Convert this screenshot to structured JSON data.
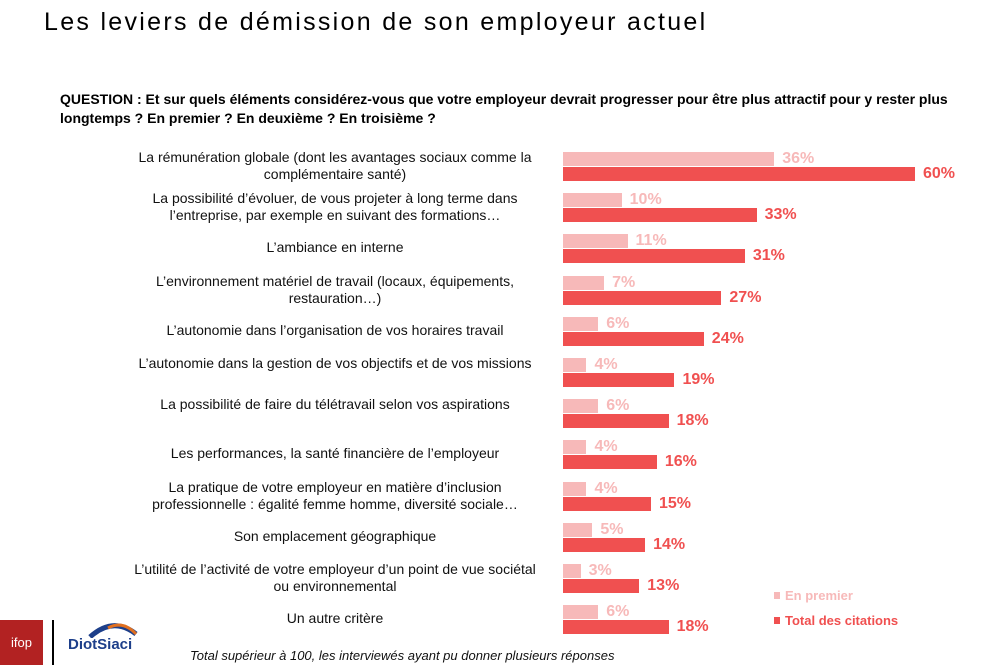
{
  "title": "Les leviers de démission de son employeur actuel",
  "question": "QUESTION : Et sur quels éléments considérez-vous que votre employeur devrait progresser pour être plus attractif pour y rester plus longtemps ? En premier ? En deuxième ? En troisième ?",
  "footnote": "Total supérieur à 100, les interviewés ayant pu donner plusieurs réponses",
  "logos": {
    "ifop": "ifop",
    "diot": "DiotSiaci"
  },
  "chart_data": {
    "type": "bar",
    "orientation": "horizontal",
    "categories": [
      "La rémunération globale (dont les avantages sociaux comme la complémentaire santé)",
      "La possibilité d’évoluer, de vous projeter à long terme dans l’entreprise, par exemple en suivant des formations…",
      "L’ambiance en interne",
      "L’environnement matériel de travail (locaux, équipements, restauration…)",
      "L’autonomie dans l’organisation de vos horaires travail",
      "L’autonomie dans la gestion de vos objectifs et de vos missions",
      "La possibilité de faire du télétravail selon vos aspirations",
      "Les performances, la santé financière de l’employeur",
      "La pratique de votre employeur en matière d’inclusion professionnelle : égalité femme homme, diversité sociale…",
      "Son emplacement géographique",
      "L’utilité de l’activité de votre employeur d’un point de vue sociétal ou environnemental",
      "Un autre critère"
    ],
    "series": [
      {
        "name": "En premier",
        "color": "#F7B9B9",
        "values": [
          36,
          10,
          11,
          7,
          6,
          4,
          6,
          4,
          4,
          5,
          3,
          6
        ],
        "labels": [
          "36%",
          "10%",
          "11%",
          "7%",
          "6%",
          "4%",
          "6%",
          "4%",
          "4%",
          "5%",
          "3%",
          "6%"
        ]
      },
      {
        "name": "Total des citations",
        "color": "#F05050",
        "values": [
          60,
          33,
          31,
          27,
          24,
          19,
          18,
          16,
          15,
          14,
          13,
          18
        ],
        "labels": [
          "60%",
          "33%",
          "31%",
          "27%",
          "24%",
          "19%",
          "18%",
          "16%",
          "15%",
          "14%",
          "13%",
          "18%"
        ]
      }
    ],
    "unit": "%",
    "legend": "bottom-right",
    "grid": false
  }
}
